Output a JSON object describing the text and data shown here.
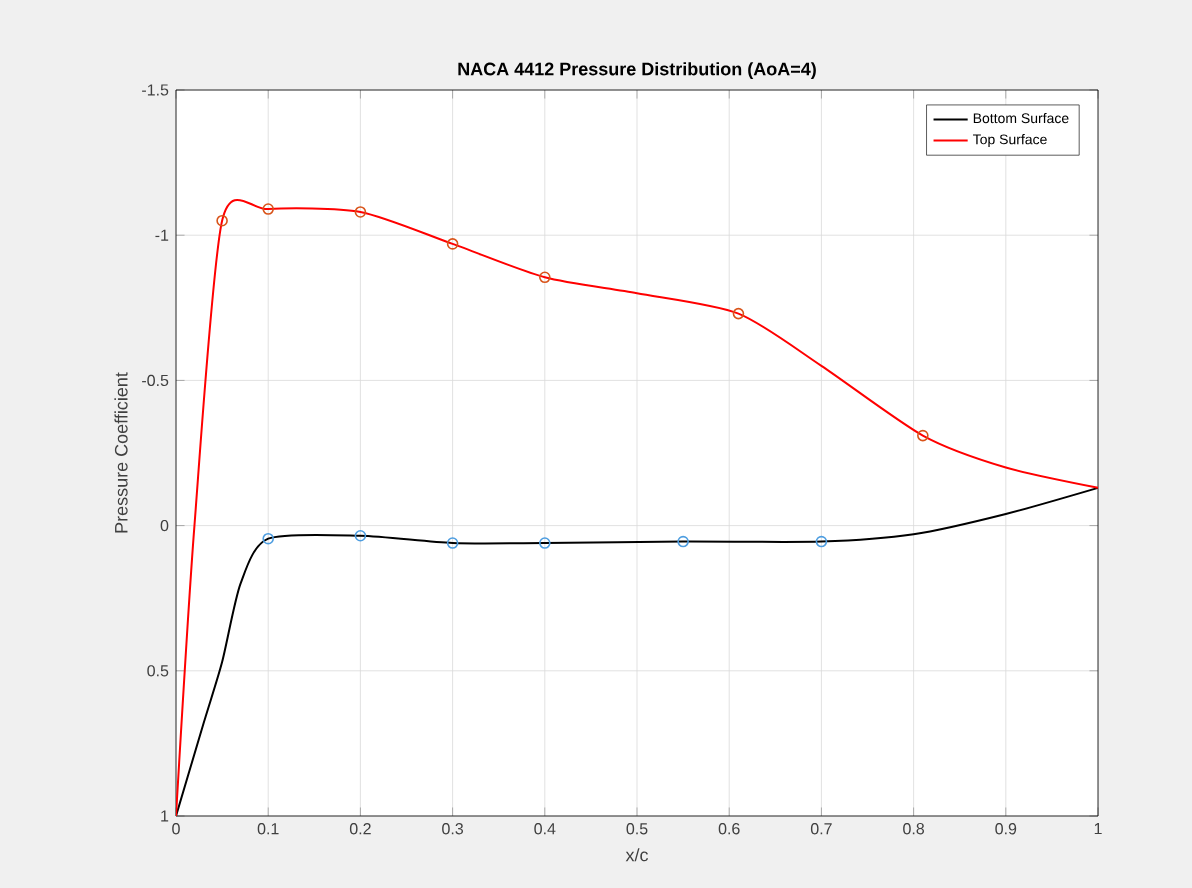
{
  "chart_data": {
    "type": "line",
    "title": "NACA 4412 Pressure Distribution (AoA=4)",
    "xlabel": "x/c",
    "ylabel": "Pressure Coefficient",
    "xlim": [
      0,
      1
    ],
    "ylim": [
      1,
      -1.5
    ],
    "xticks": [
      0,
      0.1,
      0.2,
      0.3,
      0.4,
      0.5,
      0.6,
      0.7,
      0.8,
      0.9,
      1
    ],
    "yticks": [
      -1.5,
      -1,
      -0.5,
      0,
      0.5,
      1
    ],
    "grid": true,
    "legend": "top right",
    "marker": "none",
    "line_style": "solid",
    "series": [
      {
        "name": "Bottom Surface",
        "color": "#000000",
        "x": [
          0,
          0.03,
          0.05,
          0.07,
          0.1,
          0.2,
          0.3,
          0.4,
          0.55,
          0.7,
          0.8,
          0.9,
          1
        ],
        "values": [
          1,
          0.68,
          0.47,
          0.2,
          0.045,
          0.035,
          0.06,
          0.06,
          0.055,
          0.055,
          0.03,
          -0.04,
          -0.13
        ]
      },
      {
        "name": "Top Surface",
        "color": "#ff0000",
        "x": [
          0,
          0.02,
          0.05,
          0.1,
          0.2,
          0.3,
          0.4,
          0.5,
          0.61,
          0.7,
          0.81,
          0.9,
          1
        ],
        "values": [
          1,
          0,
          -1.05,
          -1.09,
          -1.08,
          -0.97,
          -0.855,
          -0.8,
          -0.73,
          -0.55,
          -0.31,
          -0.2,
          -0.13
        ]
      },
      {
        "color": "#4d9de0",
        "type": "scatter",
        "marker": "circle",
        "x": [
          0.1,
          0.2,
          0.3,
          0.4,
          0.55,
          0.7
        ],
        "values": [
          0.045,
          0.035,
          0.06,
          0.06,
          0.055,
          0.055
        ]
      },
      {
        "color": "#d95319",
        "type": "scatter",
        "marker": "circle",
        "x": [
          0.05,
          0.1,
          0.2,
          0.3,
          0.4,
          0.61,
          0.81
        ],
        "values": [
          -1.05,
          -1.09,
          -1.08,
          -0.97,
          -0.855,
          -0.73,
          -0.31
        ]
      }
    ]
  }
}
